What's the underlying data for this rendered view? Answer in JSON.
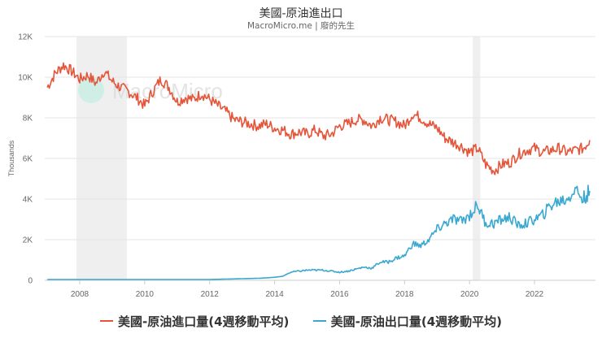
{
  "header": {
    "title": "美國-原油進出口",
    "subtitle": "MacroMicro.me | 廢的先生"
  },
  "watermark": "MacroMicro",
  "colors": {
    "imports": "#e4553a",
    "exports": "#3aa8d0",
    "band": "#efefef",
    "grid": "#e6e6e6"
  },
  "legend": [
    {
      "label": "美國-原油進口量(4週移動平均)",
      "color": "#e4553a"
    },
    {
      "label": "美國-原油出口量(4週移動平均)",
      "color": "#3aa8d0"
    }
  ],
  "chart_data": {
    "type": "line",
    "title": "美國-原油進出口",
    "subtitle": "MacroMicro.me | 廢的先生",
    "xlabel": "",
    "ylabel": "Thousands",
    "ylim": [
      0,
      12000
    ],
    "yticks": [
      "0",
      "2K",
      "4K",
      "6K",
      "8K",
      "10K",
      "12K"
    ],
    "xticks": [
      "2008",
      "2010",
      "2012",
      "2014",
      "2016",
      "2018",
      "2020",
      "2022"
    ],
    "xlim": [
      2007.0,
      2023.75
    ],
    "grid": true,
    "legend_position": "bottom",
    "shaded_periods": [
      [
        2007.9,
        2009.45
      ],
      [
        2020.1,
        2020.33
      ]
    ],
    "x": [
      2007.0,
      2007.25,
      2007.5,
      2007.75,
      2008.0,
      2008.25,
      2008.5,
      2008.75,
      2009.0,
      2009.25,
      2009.5,
      2009.75,
      2010.0,
      2010.25,
      2010.5,
      2010.75,
      2011.0,
      2011.25,
      2011.5,
      2011.75,
      2012.0,
      2012.25,
      2012.5,
      2012.75,
      2013.0,
      2013.25,
      2013.5,
      2013.75,
      2014.0,
      2014.25,
      2014.5,
      2014.75,
      2015.0,
      2015.25,
      2015.5,
      2015.75,
      2016.0,
      2016.25,
      2016.5,
      2016.75,
      2017.0,
      2017.25,
      2017.5,
      2017.75,
      2018.0,
      2018.25,
      2018.5,
      2018.75,
      2019.0,
      2019.25,
      2019.5,
      2019.75,
      2020.0,
      2020.25,
      2020.5,
      2020.75,
      2021.0,
      2021.25,
      2021.5,
      2021.75,
      2022.0,
      2022.25,
      2022.5,
      2022.75,
      2023.0,
      2023.25,
      2023.5,
      2023.7
    ],
    "series": [
      {
        "name": "美國-原油進口量(4週移動平均)",
        "values": [
          9500,
          10200,
          10600,
          10300,
          9900,
          10100,
          9700,
          10300,
          9800,
          9500,
          9300,
          9000,
          8600,
          9300,
          9900,
          9500,
          8800,
          9000,
          8900,
          9200,
          8900,
          8600,
          8300,
          7900,
          7800,
          7700,
          7600,
          7700,
          7500,
          7400,
          7200,
          7300,
          7200,
          7400,
          7100,
          7200,
          7600,
          7700,
          7900,
          7900,
          7600,
          8000,
          7900,
          7800,
          7600,
          8200,
          8000,
          7700,
          7500,
          7000,
          6800,
          6600,
          6300,
          6500,
          5700,
          5400,
          5700,
          5800,
          6200,
          6400,
          6500,
          6300,
          6400,
          6500,
          6300,
          6400,
          6500,
          6900
        ]
      },
      {
        "name": "美國-原油出口量(4週移動平均)",
        "values": [
          40,
          40,
          40,
          40,
          40,
          40,
          40,
          40,
          40,
          40,
          40,
          40,
          40,
          40,
          40,
          40,
          40,
          40,
          40,
          40,
          40,
          50,
          60,
          70,
          80,
          90,
          100,
          120,
          150,
          200,
          400,
          450,
          500,
          500,
          500,
          450,
          400,
          450,
          550,
          650,
          600,
          900,
          900,
          1100,
          1200,
          1800,
          1700,
          2000,
          2500,
          2800,
          3000,
          2900,
          3200,
          3700,
          2800,
          2800,
          3000,
          3100,
          2700,
          2800,
          3000,
          3200,
          3700,
          3900,
          4000,
          4500,
          4000,
          4400
        ]
      }
    ]
  }
}
